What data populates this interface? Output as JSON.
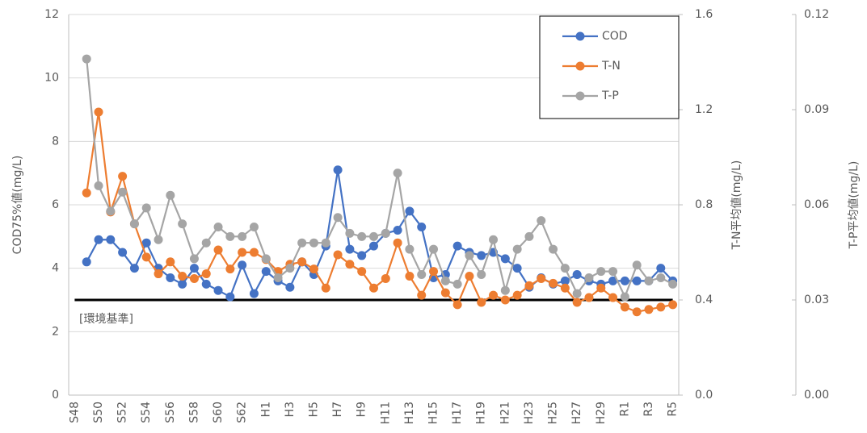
{
  "chart_data": {
    "type": "line",
    "categories": [
      "S48",
      null,
      "S50",
      null,
      "S52",
      null,
      "S54",
      null,
      "S56",
      null,
      "S58",
      null,
      "S60",
      null,
      "S62",
      null,
      "H1",
      null,
      "H3",
      null,
      "H5",
      null,
      "H7",
      null,
      "H9",
      null,
      "H11",
      null,
      "H13",
      null,
      "H15",
      null,
      "H17",
      null,
      "H19",
      null,
      "H21",
      null,
      "H23",
      null,
      "H25",
      null,
      "H27",
      null,
      "H29",
      null,
      "R1",
      null,
      "R3",
      null,
      "R5"
    ],
    "series": [
      {
        "name": "COD",
        "color": "#4472c4",
        "axis": "y",
        "values": [
          null,
          4.2,
          4.9,
          4.9,
          4.5,
          4.0,
          4.8,
          4.0,
          3.7,
          3.5,
          4.0,
          3.5,
          3.3,
          3.1,
          4.1,
          3.2,
          3.9,
          3.6,
          3.4,
          4.2,
          3.8,
          4.7,
          7.1,
          4.6,
          4.4,
          4.7,
          5.1,
          5.2,
          5.8,
          5.3,
          3.7,
          3.8,
          4.7,
          4.5,
          4.4,
          4.5,
          4.3,
          4.0,
          3.4,
          3.7,
          3.5,
          3.6,
          3.8,
          3.6,
          3.5,
          3.6,
          3.6,
          3.6,
          3.6,
          4.0,
          3.6
        ]
      },
      {
        "name": "T-N",
        "color": "#ed7d31",
        "axis": "y2",
        "values": [
          null,
          0.85,
          1.19,
          0.77,
          0.92,
          0.72,
          0.58,
          0.51,
          0.56,
          0.5,
          0.49,
          0.51,
          0.61,
          0.53,
          0.6,
          0.6,
          0.57,
          0.52,
          0.55,
          0.56,
          0.53,
          0.45,
          0.59,
          0.55,
          0.52,
          0.45,
          0.49,
          0.64,
          0.5,
          0.42,
          0.52,
          0.43,
          0.38,
          0.5,
          0.39,
          0.42,
          0.4,
          0.42,
          0.46,
          0.49,
          0.47,
          0.45,
          0.39,
          0.41,
          0.45,
          0.41,
          0.37,
          0.35,
          0.36,
          0.37,
          0.38
        ]
      },
      {
        "name": "T-P",
        "color": "#a5a5a5",
        "axis": "y3",
        "values": [
          null,
          0.106,
          0.066,
          0.058,
          0.064,
          0.054,
          0.059,
          0.049,
          0.063,
          0.054,
          0.043,
          0.048,
          0.053,
          0.05,
          0.05,
          0.053,
          0.043,
          0.037,
          0.04,
          0.048,
          0.048,
          0.048,
          0.056,
          0.051,
          0.05,
          0.05,
          0.051,
          0.07,
          0.046,
          0.038,
          0.046,
          0.036,
          0.035,
          0.044,
          0.038,
          0.049,
          0.033,
          0.046,
          0.05,
          0.055,
          0.046,
          0.04,
          0.032,
          0.037,
          0.039,
          0.039,
          0.031,
          0.041,
          0.036,
          0.037,
          0.035
        ]
      }
    ],
    "ylabel": "COD75%値(mg/L)",
    "ylim": [
      0,
      12
    ],
    "yticks": [
      0,
      2,
      4,
      6,
      8,
      10,
      12
    ],
    "y2label": "T-N平均値(mg/L)",
    "y2lim": [
      0,
      1.6
    ],
    "y2ticks": [
      {
        "value": 0,
        "label": "0.0"
      },
      0.4,
      0.8,
      1.2,
      1.6
    ],
    "y3label": "T-P平均値(mg/L)",
    "y3lim": [
      0,
      0.12
    ],
    "y3ticks": [
      {
        "value": 0,
        "label": "0.00"
      },
      0.03,
      0.06,
      0.09,
      0.12
    ],
    "reference_line": {
      "label": "[環境基準]",
      "value": 3,
      "color": "#000000"
    },
    "grid": true,
    "legend": "upper-right"
  }
}
